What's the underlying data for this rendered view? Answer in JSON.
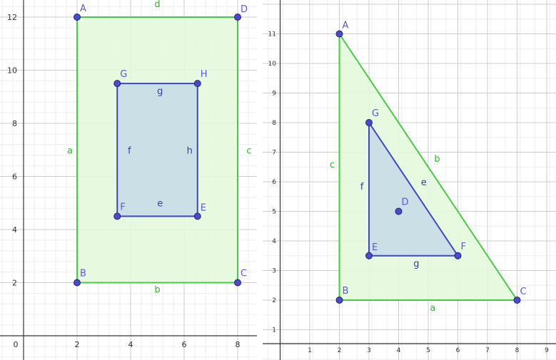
{
  "left": {
    "x_ticks": [
      "0",
      "2",
      "4",
      "6",
      "8"
    ],
    "y_ticks": [
      "2",
      "4",
      "6",
      "8",
      "10",
      "12"
    ],
    "outer": {
      "points": [
        {
          "name": "A",
          "x": 2,
          "y": 12
        },
        {
          "name": "B",
          "x": 2,
          "y": 2
        },
        {
          "name": "C",
          "x": 8,
          "y": 2
        },
        {
          "name": "D",
          "x": 8,
          "y": 12
        }
      ],
      "segment_labels": {
        "left": "a",
        "bottom": "b",
        "right": "c",
        "top": "d"
      }
    },
    "inner": {
      "points": [
        {
          "name": "F",
          "x": 3.5,
          "y": 4.5
        },
        {
          "name": "E",
          "x": 6.5,
          "y": 4.5
        },
        {
          "name": "H",
          "x": 6.5,
          "y": 9.5
        },
        {
          "name": "G",
          "x": 3.5,
          "y": 9.5
        }
      ],
      "segment_labels": {
        "bottom": "e",
        "left": "f",
        "top": "g",
        "right": "h"
      }
    }
  },
  "right": {
    "x_ticks": [
      "1",
      "2",
      "3",
      "4",
      "5",
      "6",
      "7",
      "8",
      "9"
    ],
    "y_ticks": [
      "1",
      "2",
      "3",
      "4",
      "5",
      "6",
      "7",
      "8",
      "9",
      "10",
      "11"
    ],
    "outer": {
      "points": [
        {
          "name": "A",
          "x": 2,
          "y": 11
        },
        {
          "name": "B",
          "x": 2,
          "y": 2
        },
        {
          "name": "C",
          "x": 8,
          "y": 2
        }
      ],
      "segment_labels": {
        "bottom": "a",
        "hyp": "b",
        "left": "c"
      }
    },
    "inner": {
      "points": [
        {
          "name": "G",
          "x": 3,
          "y": 8
        },
        {
          "name": "E",
          "x": 3,
          "y": 3.5
        },
        {
          "name": "F",
          "x": 6,
          "y": 3.5
        }
      ],
      "segment_labels": {
        "hyp": "e",
        "left": "f",
        "bottom": "g"
      }
    },
    "extra_point": {
      "name": "D",
      "x": 4,
      "y": 5
    }
  },
  "colors": {
    "outer_stroke": "#44cc44",
    "outer_fill": "#e4f8dc",
    "inner_stroke": "#3b46c9",
    "inner_fill": "#c9dde6",
    "point_fill": "#4a4ad0",
    "point_label": "#5a5ad6",
    "outer_segment_label": "#2eb82e"
  }
}
